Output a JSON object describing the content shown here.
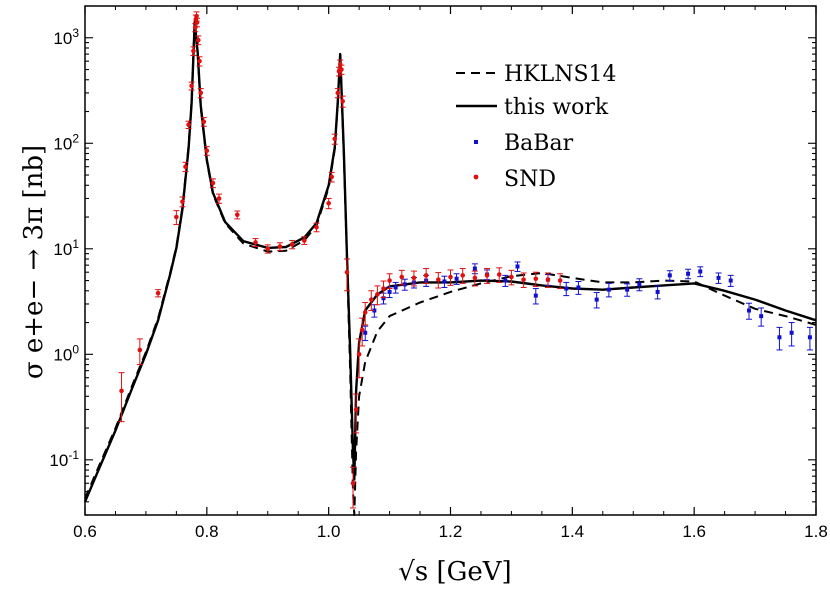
{
  "chart_data": {
    "type": "scatter",
    "title": "",
    "xlabel": "√s [GeV]",
    "ylabel": "σ e+e− → 3π [nb]",
    "xlim": [
      0.6,
      1.8
    ],
    "ylim": [
      0.03,
      2000
    ],
    "yscale": "log",
    "x_ticks": [
      "0.6",
      "0.8",
      "1.0",
      "1.2",
      "1.4",
      "1.6",
      "1.8"
    ],
    "y_ticks": [
      {
        "base": "10",
        "exp": "-1"
      },
      {
        "base": "10",
        "exp": "0"
      },
      {
        "base": "10",
        "exp": "1"
      },
      {
        "base": "10",
        "exp": "2"
      },
      {
        "base": "10",
        "exp": "3"
      }
    ],
    "legend_position": "top-right",
    "legend": [
      "HKLNS14",
      "this work",
      "BaBar",
      "SND"
    ],
    "colors": {
      "hklns": "#000000",
      "this_work": "#000000",
      "babar": "#1010d0",
      "snd": "#e01010"
    },
    "series": [
      {
        "name": "HKLNS14",
        "style": "dashed",
        "x": [
          0.6,
          0.62,
          0.65,
          0.68,
          0.7,
          0.72,
          0.74,
          0.75,
          0.76,
          0.77,
          0.775,
          0.78,
          0.785,
          0.79,
          0.8,
          0.81,
          0.83,
          0.86,
          0.9,
          0.93,
          0.96,
          0.98,
          1.0,
          1.01,
          1.015,
          1.019,
          1.025,
          1.03,
          1.035,
          1.04,
          1.042,
          1.045,
          1.05,
          1.06,
          1.08,
          1.1,
          1.15,
          1.2,
          1.25,
          1.3,
          1.35,
          1.4,
          1.45,
          1.5,
          1.55,
          1.6,
          1.65,
          1.7,
          1.75,
          1.8
        ],
        "y": [
          0.043,
          0.08,
          0.2,
          0.55,
          1.05,
          2.2,
          6.0,
          10.5,
          25,
          95,
          250,
          1450,
          700,
          220,
          68,
          33,
          17.5,
          11.2,
          9.4,
          9.6,
          12.0,
          16.5,
          38,
          88,
          240,
          680,
          75,
          8,
          0.8,
          0.05,
          0.03,
          0.12,
          0.4,
          0.85,
          1.65,
          2.3,
          3.1,
          3.9,
          4.7,
          5.5,
          5.9,
          5.3,
          4.8,
          4.8,
          5.0,
          4.9,
          3.6,
          2.7,
          2.3,
          1.9
        ]
      },
      {
        "name": "this work",
        "style": "solid",
        "x": [
          0.6,
          0.62,
          0.65,
          0.68,
          0.7,
          0.72,
          0.74,
          0.75,
          0.76,
          0.77,
          0.775,
          0.78,
          0.785,
          0.79,
          0.8,
          0.81,
          0.83,
          0.86,
          0.9,
          0.93,
          0.96,
          0.98,
          1.0,
          1.01,
          1.015,
          1.019,
          1.025,
          1.03,
          1.035,
          1.04,
          1.042,
          1.045,
          1.05,
          1.06,
          1.08,
          1.1,
          1.15,
          1.2,
          1.25,
          1.3,
          1.35,
          1.4,
          1.45,
          1.5,
          1.55,
          1.6,
          1.65,
          1.7,
          1.75,
          1.8
        ],
        "y": [
          0.04,
          0.075,
          0.19,
          0.52,
          1.0,
          2.1,
          5.8,
          10.2,
          24,
          90,
          240,
          1400,
          720,
          230,
          70,
          34,
          18,
          11.8,
          10.2,
          10.4,
          12.8,
          17.5,
          40,
          92,
          250,
          700,
          80,
          9,
          1.2,
          0.12,
          0.065,
          0.45,
          1.3,
          2.6,
          3.7,
          4.4,
          4.8,
          4.8,
          5.0,
          4.9,
          4.5,
          4.2,
          4.1,
          4.3,
          4.5,
          4.7,
          4.0,
          3.3,
          2.6,
          2.1
        ]
      }
    ],
    "babar": {
      "x": [
        1.06,
        1.075,
        1.09,
        1.1,
        1.11,
        1.125,
        1.14,
        1.16,
        1.19,
        1.21,
        1.24,
        1.26,
        1.29,
        1.31,
        1.34,
        1.36,
        1.39,
        1.41,
        1.44,
        1.46,
        1.49,
        1.51,
        1.54,
        1.56,
        1.59,
        1.61,
        1.64,
        1.66,
        1.69,
        1.71,
        1.74,
        1.76,
        1.79
      ],
      "y": [
        1.6,
        2.6,
        3.4,
        3.9,
        4.3,
        4.6,
        4.8,
        5.0,
        4.9,
        5.2,
        6.5,
        5.7,
        5.0,
        6.8,
        3.6,
        5.1,
        4.2,
        4.3,
        3.3,
        4.1,
        4.1,
        4.6,
        3.9,
        5.6,
        5.8,
        6.1,
        5.3,
        5.0,
        2.6,
        2.3,
        1.45,
        1.6,
        1.45
      ],
      "err": [
        0.25,
        0.35,
        0.4,
        0.45,
        0.5,
        0.55,
        0.55,
        0.6,
        0.6,
        0.6,
        0.7,
        0.6,
        0.6,
        0.7,
        0.6,
        0.6,
        0.6,
        0.6,
        0.55,
        0.6,
        0.55,
        0.6,
        0.55,
        0.6,
        0.6,
        0.65,
        0.6,
        0.6,
        0.45,
        0.45,
        0.35,
        0.4,
        0.35
      ]
    },
    "snd": {
      "x": [
        0.66,
        0.69,
        0.72,
        0.75,
        0.76,
        0.765,
        0.77,
        0.775,
        0.778,
        0.781,
        0.782,
        0.783,
        0.784,
        0.786,
        0.788,
        0.79,
        0.795,
        0.8,
        0.81,
        0.82,
        0.85,
        0.88,
        0.9,
        0.92,
        0.94,
        0.96,
        0.98,
        1.0,
        1.005,
        1.01,
        1.015,
        1.017,
        1.019,
        1.021,
        1.023,
        1.03,
        1.04,
        1.045,
        1.05,
        1.055,
        1.06,
        1.07,
        1.08,
        1.09,
        1.1,
        1.12,
        1.14,
        1.16,
        1.18,
        1.2,
        1.22,
        1.24,
        1.26,
        1.28,
        1.3,
        1.32,
        1.34,
        1.36,
        1.38
      ],
      "y": [
        0.45,
        1.1,
        3.8,
        20,
        28,
        60,
        150,
        350,
        750,
        1250,
        1500,
        1600,
        1400,
        950,
        600,
        300,
        160,
        85,
        42,
        30,
        21,
        11.5,
        10,
        10.5,
        11,
        12,
        16,
        27,
        48,
        110,
        300,
        480,
        560,
        500,
        250,
        6,
        0.06,
        0.3,
        1.0,
        1.7,
        2.5,
        3.3,
        3.7,
        4.2,
        5.0,
        5.4,
        5.3,
        5.6,
        5.1,
        5.4,
        5.6,
        5.3,
        5.6,
        5.7,
        5.4,
        5.1,
        5.2,
        5.1,
        5.0
      ],
      "err": [
        0.22,
        0.3,
        0.3,
        3,
        3,
        6,
        12,
        30,
        70,
        110,
        140,
        160,
        130,
        90,
        60,
        30,
        15,
        8,
        4,
        3,
        1.8,
        1,
        0.9,
        0.9,
        1,
        1,
        1.5,
        3,
        5,
        12,
        30,
        45,
        55,
        50,
        30,
        2,
        0.025,
        0.12,
        0.4,
        0.5,
        0.6,
        0.7,
        0.75,
        0.75,
        0.8,
        0.85,
        0.85,
        0.9,
        0.85,
        0.9,
        0.9,
        0.85,
        0.9,
        0.9,
        0.85,
        0.8,
        0.8,
        0.8,
        0.8
      ]
    }
  }
}
